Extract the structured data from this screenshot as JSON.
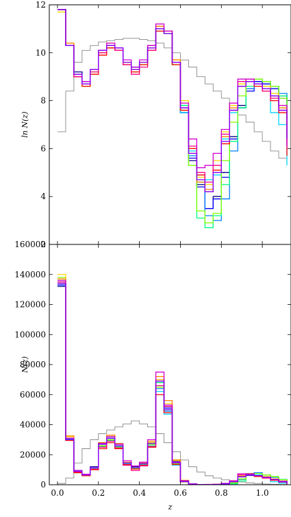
{
  "chart_data": [
    {
      "type": "line",
      "step": true,
      "ylabel": "ln N(z)",
      "ylim": [
        2,
        12
      ],
      "xlim": [
        -0.04,
        1.14
      ],
      "yticks": [
        "2",
        "4",
        "6",
        "8",
        "10",
        "12"
      ],
      "bin_edges": [
        0.0,
        0.04,
        0.08,
        0.12,
        0.16,
        0.2,
        0.24,
        0.28,
        0.32,
        0.36,
        0.4,
        0.44,
        0.48,
        0.52,
        0.56,
        0.6,
        0.64,
        0.68,
        0.72,
        0.76,
        0.8,
        0.84,
        0.88,
        0.92,
        0.96,
        1.0,
        1.04,
        1.08,
        1.12
      ],
      "reference": {
        "color": "#888888",
        "values": [
          6.7,
          8.4,
          9.6,
          10.1,
          10.3,
          10.45,
          10.5,
          10.55,
          10.6,
          10.6,
          10.55,
          10.5,
          10.4,
          10.2,
          10.0,
          9.7,
          9.4,
          9.0,
          8.7,
          8.4,
          8.1,
          7.7,
          7.4,
          7.1,
          6.7,
          6.3,
          5.9,
          5.6
        ]
      },
      "series": [
        {
          "color": "#000080",
          "values": [
            11.8,
            10.3,
            9.2,
            8.8,
            9.3,
            10.0,
            10.3,
            10.2,
            9.6,
            9.4,
            9.6,
            10.3,
            11.0,
            10.8,
            9.6,
            7.5,
            5.5,
            4.5,
            3.5,
            4.0,
            5.0,
            6.5,
            7.8,
            8.5,
            8.8,
            8.7,
            8.5,
            8.2,
            7.2
          ]
        },
        {
          "color": "#0000ff",
          "values": [
            11.8,
            10.3,
            9.1,
            8.8,
            9.3,
            10.1,
            10.3,
            10.2,
            9.6,
            9.4,
            9.6,
            10.2,
            11.1,
            10.9,
            9.6,
            7.5,
            5.6,
            4.4,
            3.5,
            3.9,
            4.8,
            6.4,
            7.7,
            8.4,
            8.8,
            8.7,
            8.5,
            8.1,
            7.2
          ]
        },
        {
          "color": "#0080ff",
          "values": [
            11.8,
            10.3,
            9.0,
            8.7,
            9.2,
            10.0,
            10.2,
            10.1,
            9.5,
            9.3,
            9.5,
            10.1,
            11.0,
            10.9,
            9.5,
            7.8,
            5.7,
            4.6,
            3.2,
            3.0,
            3.9,
            5.9,
            7.7,
            8.5,
            8.9,
            8.8,
            8.6,
            8.3,
            7.4
          ]
        },
        {
          "color": "#00d4ff",
          "values": [
            11.8,
            10.3,
            9.0,
            8.7,
            9.2,
            10.0,
            10.3,
            10.1,
            9.6,
            9.3,
            9.6,
            10.2,
            10.9,
            10.8,
            9.6,
            7.5,
            5.9,
            4.9,
            4.7,
            4.9,
            6.4,
            7.5,
            8.6,
            8.8,
            8.7,
            8.5,
            7.5,
            7.0,
            5.3
          ]
        },
        {
          "color": "#00ff80",
          "values": [
            11.8,
            10.3,
            9.0,
            8.6,
            9.2,
            10.0,
            10.3,
            10.1,
            9.5,
            9.2,
            9.5,
            10.1,
            11.0,
            10.8,
            9.5,
            7.8,
            5.3,
            3.1,
            2.7,
            3.2,
            4.5,
            6.3,
            7.7,
            8.6,
            8.9,
            8.8,
            8.6,
            8.2,
            7.0
          ]
        },
        {
          "color": "#80ff00",
          "values": [
            11.7,
            10.3,
            9.0,
            8.6,
            9.2,
            10.0,
            10.2,
            10.1,
            9.5,
            9.2,
            9.5,
            10.2,
            11.0,
            10.8,
            9.5,
            7.6,
            5.3,
            3.4,
            2.9,
            3.3,
            5.5,
            7.1,
            8.2,
            8.9,
            8.9,
            8.8,
            8.6,
            8.1,
            6.8
          ]
        },
        {
          "color": "#ffd400",
          "values": [
            11.7,
            10.4,
            9.0,
            8.7,
            9.3,
            10.1,
            10.4,
            10.2,
            9.6,
            9.3,
            9.6,
            10.2,
            11.1,
            10.9,
            9.7,
            8.0,
            6.0,
            4.8,
            4.5,
            5.5,
            6.7,
            7.8,
            8.7,
            8.8,
            8.7,
            8.6,
            8.3,
            7.8,
            6.4
          ]
        },
        {
          "color": "#ff8000",
          "values": [
            11.8,
            10.4,
            9.1,
            8.7,
            9.3,
            10.1,
            10.4,
            10.2,
            9.6,
            9.3,
            9.6,
            10.3,
            11.1,
            10.9,
            9.7,
            7.9,
            5.8,
            4.6,
            4.3,
            5.3,
            6.5,
            7.7,
            8.6,
            8.8,
            8.7,
            8.5,
            8.2,
            7.7,
            6.2
          ]
        },
        {
          "color": "#ff0000",
          "values": [
            11.8,
            10.3,
            9.0,
            8.6,
            9.1,
            9.9,
            10.2,
            10.1,
            9.5,
            9.2,
            9.5,
            10.1,
            10.9,
            10.8,
            9.5,
            7.6,
            6.0,
            4.9,
            4.2,
            5.1,
            6.2,
            7.6,
            8.6,
            8.8,
            8.6,
            8.4,
            8.0,
            7.5,
            5.7
          ]
        },
        {
          "color": "#ff0080",
          "values": [
            11.8,
            10.3,
            9.0,
            8.7,
            9.2,
            10.0,
            10.3,
            10.1,
            9.5,
            9.1,
            9.4,
            10.1,
            11.0,
            10.9,
            9.6,
            7.7,
            6.1,
            5.0,
            4.6,
            5.3,
            6.6,
            7.9,
            8.8,
            8.9,
            8.7,
            8.4,
            8.1,
            7.6,
            6.0
          ]
        },
        {
          "color": "#d000d0",
          "values": [
            11.8,
            10.3,
            9.1,
            8.8,
            9.3,
            10.1,
            10.4,
            10.2,
            9.7,
            9.4,
            9.7,
            10.3,
            11.2,
            10.9,
            9.6,
            7.9,
            6.4,
            5.2,
            5.3,
            5.8,
            6.8,
            7.9,
            8.9,
            8.9,
            8.7,
            8.5,
            8.2,
            7.8,
            6.1
          ]
        },
        {
          "color": "#8000ff",
          "values": [
            11.8,
            10.3,
            9.1,
            8.7,
            9.3,
            10.1,
            10.3,
            10.2,
            9.6,
            9.3,
            9.6,
            10.2,
            11.0,
            10.8,
            9.6,
            7.7,
            5.8,
            4.7,
            4.2,
            5.0,
            6.3,
            7.6,
            8.6,
            8.8,
            8.7,
            8.5,
            8.2,
            7.6,
            6.4
          ]
        }
      ]
    },
    {
      "type": "line",
      "step": true,
      "xlabel": "z",
      "ylabel": "N(z)",
      "ylim": [
        0,
        160000
      ],
      "xlim": [
        -0.04,
        1.14
      ],
      "xticks": [
        "0.0",
        "0.2",
        "0.4",
        "0.6",
        "0.8",
        "1.0"
      ],
      "yticks": [
        "0",
        "20000",
        "40000",
        "60000",
        "80000",
        "100000",
        "120000",
        "140000",
        "160000"
      ],
      "bin_edges": [
        0.0,
        0.04,
        0.08,
        0.12,
        0.16,
        0.2,
        0.24,
        0.28,
        0.32,
        0.36,
        0.4,
        0.44,
        0.48,
        0.52,
        0.56,
        0.6,
        0.64,
        0.68,
        0.72,
        0.76,
        0.8,
        0.84,
        0.88,
        0.92,
        0.96,
        1.0,
        1.04,
        1.08,
        1.12
      ],
      "reference": {
        "color": "#888888",
        "values": [
          800,
          4500,
          14500,
          24000,
          30000,
          34000,
          36500,
          38500,
          40500,
          42500,
          40500,
          38500,
          34000,
          28000,
          22000,
          16500,
          12000,
          8500,
          6000,
          4500,
          3300,
          2500,
          1800,
          1200,
          800,
          500,
          300,
          200
        ]
      },
      "series": [
        {
          "color": "#000080",
          "values": [
            132000,
            30000,
            9500,
            7000,
            12000,
            28000,
            32000,
            27000,
            15000,
            12000,
            14000,
            28000,
            68000,
            52000,
            16000,
            2000,
            300,
            150,
            80,
            150,
            600,
            2500,
            5500,
            6500,
            6000,
            4500,
            3500,
            2000,
            600
          ]
        },
        {
          "color": "#0000ff",
          "values": [
            133000,
            30000,
            9000,
            6500,
            11500,
            27000,
            31000,
            26000,
            14500,
            11500,
            13500,
            27000,
            70000,
            51000,
            15500,
            2000,
            300,
            150,
            80,
            150,
            500,
            2200,
            5200,
            6200,
            5800,
            4400,
            3300,
            1900,
            600
          ]
        },
        {
          "color": "#0080ff",
          "values": [
            135000,
            30500,
            8500,
            6500,
            11000,
            26000,
            30000,
            25500,
            14000,
            11000,
            13000,
            25000,
            64000,
            49000,
            14000,
            2200,
            300,
            150,
            40,
            50,
            100,
            700,
            3500,
            7500,
            8000,
            6500,
            5000,
            3500,
            1000
          ]
        },
        {
          "color": "#00d4ff",
          "values": [
            134000,
            30000,
            8500,
            6500,
            11000,
            26000,
            30000,
            25000,
            14000,
            11500,
            13500,
            27000,
            62000,
            47000,
            13000,
            2000,
            350,
            150,
            110,
            150,
            500,
            2000,
            5500,
            7000,
            6500,
            5000,
            2000,
            1100,
            200
          ]
        },
        {
          "color": "#00ff80",
          "values": [
            136000,
            30000,
            8000,
            6000,
            10500,
            25500,
            29500,
            25000,
            13500,
            11000,
            13000,
            26000,
            68000,
            50000,
            14000,
            2500,
            200,
            25,
            15,
            30,
            100,
            600,
            2500,
            6500,
            7500,
            6500,
            5500,
            3500,
            1100
          ]
        },
        {
          "color": "#80ff00",
          "values": [
            138000,
            31000,
            8000,
            6000,
            10500,
            26000,
            30000,
            25000,
            13500,
            10500,
            13000,
            27000,
            65000,
            50000,
            14000,
            2000,
            200,
            30,
            20,
            35,
            250,
            1300,
            3800,
            7500,
            7500,
            6500,
            5400,
            3300,
            900
          ]
        },
        {
          "color": "#ffd400",
          "values": [
            140000,
            32000,
            8500,
            6500,
            11500,
            27500,
            32000,
            27000,
            15000,
            11500,
            14000,
            28000,
            70000,
            54000,
            16000,
            3000,
            400,
            120,
            100,
            250,
            800,
            2500,
            6000,
            7000,
            6000,
            5500,
            4000,
            2500,
            600
          ]
        },
        {
          "color": "#ff8000",
          "values": [
            137000,
            32500,
            9000,
            6500,
            11500,
            28000,
            33000,
            27500,
            15000,
            11500,
            14500,
            29000,
            72000,
            56000,
            16500,
            2800,
            350,
            100,
            80,
            200,
            700,
            2200,
            5500,
            6600,
            5800,
            5000,
            3600,
            2200,
            500
          ]
        },
        {
          "color": "#ff0000",
          "values": [
            134000,
            29500,
            8000,
            6000,
            10000,
            24000,
            28000,
            24000,
            13500,
            10500,
            13000,
            25000,
            60000,
            48000,
            13500,
            2000,
            400,
            130,
            70,
            160,
            500,
            2000,
            5400,
            6500,
            5500,
            4400,
            3000,
            1800,
            300
          ]
        },
        {
          "color": "#ff0080",
          "values": [
            135000,
            30000,
            8500,
            6500,
            10500,
            25000,
            29000,
            24500,
            13000,
            9500,
            12500,
            25500,
            66000,
            52000,
            15000,
            2200,
            450,
            150,
            100,
            200,
            750,
            2700,
            6600,
            7300,
            6000,
            4400,
            3300,
            2000,
            400
          ]
        },
        {
          "color": "#d000d0",
          "values": [
            136000,
            31000,
            9500,
            7000,
            11500,
            27500,
            32000,
            27000,
            16000,
            12500,
            15000,
            30000,
            75000,
            53000,
            15000,
            2700,
            600,
            180,
            200,
            330,
            900,
            2700,
            7300,
            7300,
            6000,
            5000,
            3600,
            2400,
            450
          ]
        },
        {
          "color": "#8000ff",
          "values": [
            134000,
            30000,
            9000,
            6500,
            11500,
            27000,
            31000,
            26000,
            14500,
            11500,
            14000,
            27500,
            69000,
            50000,
            14500,
            2200,
            330,
            110,
            70,
            150,
            550,
            2000,
            5400,
            6600,
            6000,
            4900,
            3600,
            2000,
            600
          ]
        }
      ]
    }
  ]
}
